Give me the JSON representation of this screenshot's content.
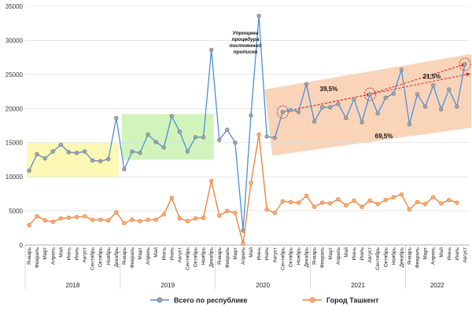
{
  "chart_data": {
    "type": "line",
    "title": "",
    "xlabel": "",
    "ylabel": "",
    "ylim": [
      0,
      35000
    ],
    "yticks": [
      0,
      5000,
      10000,
      15000,
      20000,
      25000,
      30000,
      35000
    ],
    "grid": true,
    "legend_position": "bottom",
    "months": [
      "Январь",
      "Февраль",
      "Март",
      "Апрель",
      "Май",
      "Июнь",
      "Июль",
      "Август",
      "Сентябрь",
      "Октябрь",
      "Ноябрь",
      "Декабрь"
    ],
    "categories": [
      "Январь",
      "Февраль",
      "Март",
      "Апрель",
      "Май",
      "Июнь",
      "Июль",
      "Август",
      "Сентябрь",
      "Октябрь",
      "Ноябрь",
      "Декабрь",
      "Январь",
      "Февраль",
      "Март",
      "Апрель",
      "Май",
      "Июнь",
      "Июль",
      "Август",
      "Сентябрь",
      "Октябрь",
      "Ноябрь",
      "Декабрь",
      "Январь",
      "Февраль",
      "Март",
      "Апрель",
      "Май",
      "Июнь",
      "Июль",
      "Август",
      "Сентябрь",
      "Октябрь",
      "Ноябрь",
      "Декабрь",
      "Январь",
      "Февраль",
      "Март",
      "Апрель",
      "Май",
      "Июнь",
      "Июль",
      "Август",
      "Сентябрь",
      "Октябрь",
      "Ноябрь",
      "Декабрь",
      "Январь",
      "Февраль",
      "Март",
      "Апрель",
      "Май",
      "Июнь",
      "Июль",
      "Август"
    ],
    "years": [
      {
        "label": "2018",
        "start": 0,
        "end": 11
      },
      {
        "label": "2019",
        "start": 12,
        "end": 23
      },
      {
        "label": "2020",
        "start": 24,
        "end": 35
      },
      {
        "label": "2021",
        "start": 36,
        "end": 47
      },
      {
        "label": "2022",
        "start": 48,
        "end": 55
      }
    ],
    "series": [
      {
        "name": "Всего по республике",
        "color": "#8496b0",
        "line_color": "#4a90d9",
        "values": [
          10900,
          13300,
          12700,
          13700,
          14700,
          13600,
          13500,
          13700,
          12400,
          12300,
          12600,
          18600,
          11100,
          13700,
          13500,
          16200,
          15100,
          14300,
          18900,
          16600,
          13700,
          15800,
          15800,
          28600,
          15400,
          16900,
          15000,
          2100,
          19000,
          33600,
          15900,
          15700,
          19500,
          19800,
          19500,
          23600,
          18100,
          20200,
          20200,
          20700,
          18600,
          21400,
          18000,
          22100,
          19300,
          21600,
          22200,
          25700,
          17700,
          22100,
          20300,
          23400,
          19900,
          22800,
          20300,
          26500
        ]
      },
      {
        "name": "Город Ташкент",
        "color": "#ed7d31",
        "line_color": "#ed7d31",
        "values": [
          2900,
          4200,
          3600,
          3400,
          3900,
          4000,
          4100,
          4200,
          3700,
          3700,
          3600,
          4800,
          3200,
          3700,
          3500,
          3700,
          3700,
          4500,
          6900,
          3900,
          3500,
          3900,
          4000,
          9400,
          4300,
          5000,
          4700,
          200,
          9100,
          16200,
          5200,
          4700,
          6400,
          6300,
          6200,
          7200,
          5600,
          6200,
          6100,
          6700,
          5800,
          6500,
          5600,
          6500,
          6000,
          6600,
          7000,
          7400,
          5200,
          6300,
          6000,
          7000,
          6100,
          6600,
          6200,
          null
        ]
      }
    ],
    "annotations": [
      {
        "text": "Упрощена процедура постоянной прописки",
        "lines": [
          "Упрощена",
          "процедура",
          "постоянной",
          "прописки"
        ]
      },
      {
        "text": "39,5%"
      },
      {
        "text": "21,5%"
      },
      {
        "text": "69,5%"
      }
    ],
    "highlight_bands": [
      {
        "from_index": 0,
        "to_index": 11,
        "color": "#fbf7a8"
      },
      {
        "from_index": 12,
        "to_index": 23,
        "color": "#c9f2b0"
      },
      {
        "from_index": 31,
        "to_index": 55,
        "color": "#f8c9a8"
      }
    ]
  }
}
